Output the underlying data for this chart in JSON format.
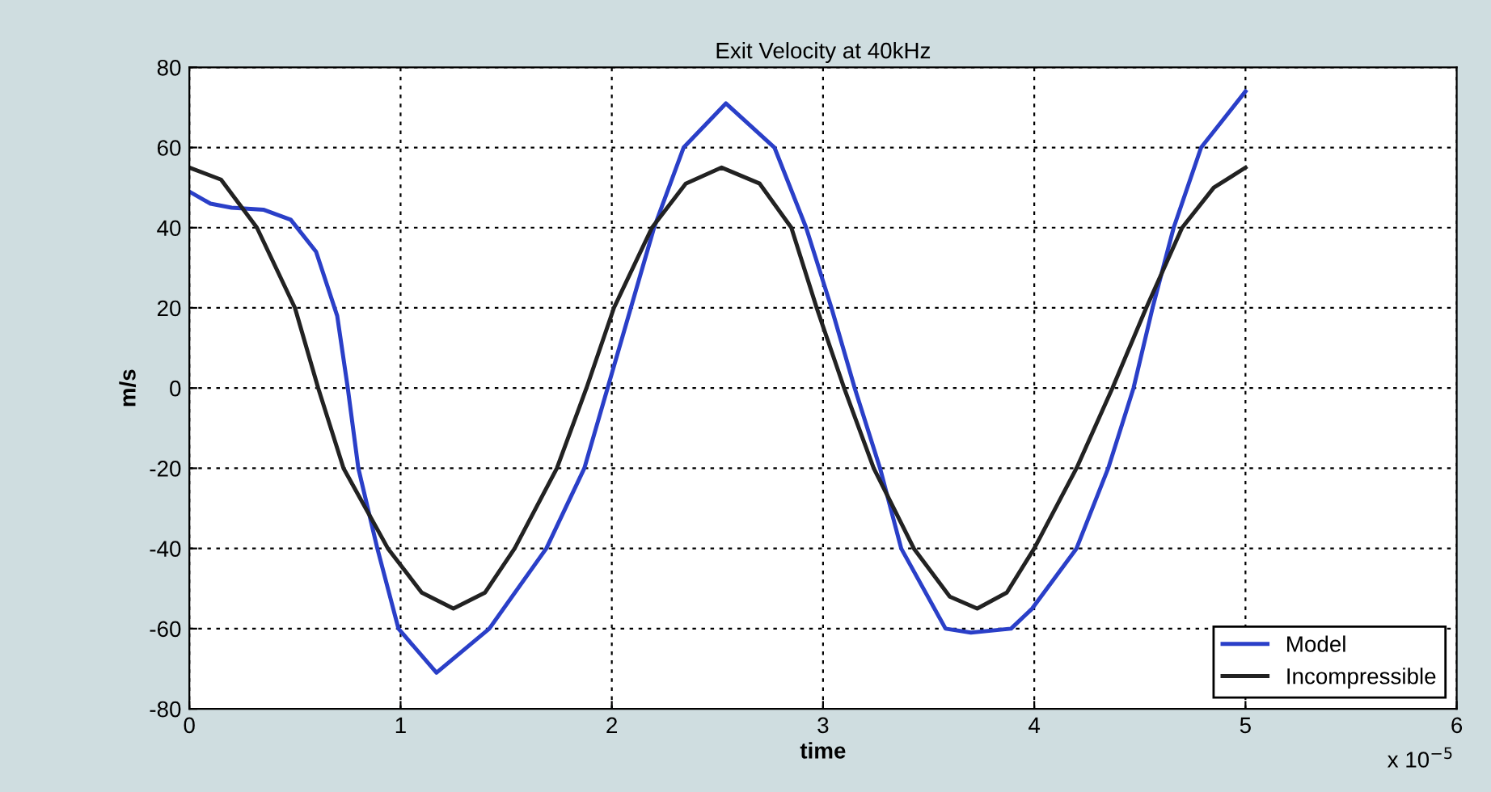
{
  "chart_data": {
    "type": "line",
    "title": "Exit Velocity at 40kHz",
    "xlabel": "time",
    "ylabel": "m/s",
    "annotations": [
      "x 10$^{−5}$"
    ],
    "xlim": [
      0,
      6
    ],
    "xticks": [
      0,
      1,
      2,
      3,
      4,
      5,
      6
    ],
    "ylim": [
      -80,
      80
    ],
    "yticks": [
      -80,
      -60,
      -40,
      -20,
      0,
      20,
      40,
      60,
      80
    ],
    "grid": true,
    "legend": "bottom right",
    "line_style": "solid",
    "marker": "none",
    "series": [
      {
        "name": "Model",
        "color": "#2a3fc8",
        "x": [
          0,
          0.1,
          0.2,
          0.35,
          0.48,
          0.6,
          0.7,
          0.75,
          0.8,
          0.89,
          0.99,
          1.17,
          1.42,
          1.69,
          1.87,
          1.98,
          2.09,
          2.2,
          2.34,
          2.54,
          2.77,
          2.92,
          3.04,
          3.15,
          3.27,
          3.37,
          3.58,
          3.7,
          3.89,
          3.99,
          4.2,
          4.35,
          4.47,
          4.56,
          4.66,
          4.79,
          5.0
        ],
        "values": [
          49,
          46,
          45,
          44.5,
          42,
          34,
          18,
          0,
          -20,
          -40,
          -60,
          -71,
          -60,
          -40,
          -20,
          0,
          20,
          40,
          60,
          71,
          60,
          40,
          20,
          0,
          -20,
          -40,
          -60,
          -61,
          -60,
          -55,
          -40,
          -20,
          0,
          20,
          40,
          60,
          74
        ]
      },
      {
        "name": "Incompressible",
        "color": "#222222",
        "x": [
          0,
          0.15,
          0.32,
          0.5,
          0.61,
          0.73,
          0.94,
          1.1,
          1.25,
          1.4,
          1.54,
          1.74,
          1.88,
          2.01,
          2.19,
          2.35,
          2.52,
          2.7,
          2.85,
          2.97,
          3.1,
          3.24,
          3.43,
          3.6,
          3.73,
          3.87,
          4.0,
          4.2,
          4.37,
          4.53,
          4.7,
          4.85,
          5.0
        ],
        "values": [
          55,
          52,
          40,
          20,
          0,
          -20,
          -40,
          -51,
          -55,
          -51,
          -40,
          -20,
          0,
          20,
          40,
          51,
          55,
          51,
          40,
          20,
          0,
          -20,
          -40,
          -52,
          -55,
          -51,
          -40,
          -20,
          0,
          20,
          40,
          50,
          55
        ]
      }
    ]
  }
}
